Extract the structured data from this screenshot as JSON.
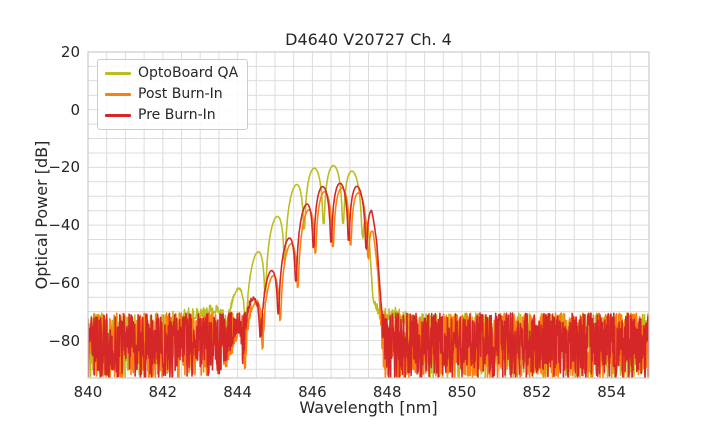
{
  "title": "D4640 V20727 Ch. 4",
  "chart_data": {
    "type": "line",
    "title": "D4640 V20727 Ch. 4",
    "xlabel": "Wavelength [nm]",
    "ylabel": "Optical Power [dB]",
    "xlim": [
      840,
      855
    ],
    "ylim": [
      -93,
      20
    ],
    "x_ticks": [
      840,
      842,
      844,
      846,
      848,
      850,
      852,
      854
    ],
    "y_ticks": [
      20,
      0,
      -20,
      -40,
      -60,
      -80
    ],
    "y_tick_labels": [
      "20",
      "0",
      "−20",
      "−40",
      "−60",
      "−80"
    ],
    "grid": {
      "visible": true,
      "minor": true,
      "x_minor_step_nm": 0.5,
      "y_minor_step_db": 5,
      "color": "#dcdcdc",
      "spine_color": "#cccccc"
    },
    "legend": {
      "position": "upper-left"
    },
    "noise_floor_db": {
      "typical_top": -70.5,
      "typical_bottom": -93,
      "mean": -80
    },
    "sample_step_nm": 0.01,
    "series": [
      {
        "name": "OptoBoard QA",
        "color": "#bcbd22",
        "seed": 101,
        "main_peak": {
          "wavelength_nm": 846.6,
          "power_db": -19.3
        },
        "noise": {
          "base_db": -70.5,
          "depth_db": 23,
          "exponent": 1.2
        },
        "ripple": {
          "spacing_nm": 0.52,
          "phase_nm": 846.3,
          "window": [
            843.44,
            847.6
          ],
          "floor_amplitude": 0.1
        },
        "envelope_db": [
          [
            840.0,
            -120
          ],
          [
            842.0,
            -88
          ],
          [
            842.35,
            -76
          ],
          [
            842.7,
            -73
          ],
          [
            843.1,
            -71.5
          ],
          [
            843.44,
            -70.3
          ],
          [
            843.7,
            -69
          ],
          [
            844.22,
            -57
          ],
          [
            844.74,
            -43.5
          ],
          [
            845.26,
            -32
          ],
          [
            845.78,
            -21.2
          ],
          [
            846.3,
            -19.4
          ],
          [
            846.82,
            -19.3
          ],
          [
            847.34,
            -23.5
          ],
          [
            847.5,
            -40
          ],
          [
            847.62,
            -66
          ],
          [
            847.8,
            -72.5
          ],
          [
            848.0,
            -73
          ],
          [
            848.2,
            -72
          ],
          [
            848.45,
            -74.5
          ],
          [
            848.7,
            -79
          ],
          [
            848.95,
            -120
          ],
          [
            855.0,
            -120
          ]
        ]
      },
      {
        "name": "Post Burn-In",
        "color": "#ff7f0e",
        "seed": 303,
        "main_peak": {
          "wavelength_nm": 847.0,
          "power_db": -26.8
        },
        "noise": {
          "base_db": -70.5,
          "depth_db": 23,
          "exponent": 1.2
        },
        "ripple": {
          "spacing_nm": 0.47,
          "phase_nm": 846.55,
          "window": [
            843.97,
            847.725
          ],
          "floor_amplitude": 0.1
        },
        "envelope_db": [
          [
            840.0,
            -120
          ],
          [
            843.6,
            -96
          ],
          [
            843.97,
            -80
          ],
          [
            844.2,
            -72
          ],
          [
            844.67,
            -63.5
          ],
          [
            845.14,
            -53
          ],
          [
            845.61,
            -41.5
          ],
          [
            846.08,
            -29.5
          ],
          [
            846.55,
            -27.4
          ],
          [
            847.02,
            -26.8
          ],
          [
            847.49,
            -31
          ],
          [
            847.62,
            -40
          ],
          [
            847.76,
            -58
          ],
          [
            847.88,
            -88
          ],
          [
            848.0,
            -120
          ],
          [
            855.0,
            -120
          ]
        ]
      },
      {
        "name": "Pre Burn-In",
        "color": "#d62728",
        "seed": 202,
        "main_peak": {
          "wavelength_nm": 846.9,
          "power_db": -25.2
        },
        "noise": {
          "base_db": -70.5,
          "depth_db": 23,
          "exponent": 1.2
        },
        "ripple": {
          "spacing_nm": 0.47,
          "phase_nm": 846.5,
          "window": [
            843.92,
            847.675
          ],
          "floor_amplitude": 0.1
        },
        "envelope_db": [
          [
            840.0,
            -120
          ],
          [
            843.55,
            -96
          ],
          [
            843.92,
            -79
          ],
          [
            844.15,
            -70.5
          ],
          [
            844.62,
            -62
          ],
          [
            845.09,
            -51
          ],
          [
            845.56,
            -39.5
          ],
          [
            846.03,
            -27.5
          ],
          [
            846.5,
            -25.8
          ],
          [
            846.97,
            -25.2
          ],
          [
            847.44,
            -28
          ],
          [
            847.58,
            -33
          ],
          [
            847.72,
            -46
          ],
          [
            847.85,
            -70
          ],
          [
            847.98,
            -110
          ],
          [
            855.0,
            -120
          ]
        ]
      }
    ]
  }
}
